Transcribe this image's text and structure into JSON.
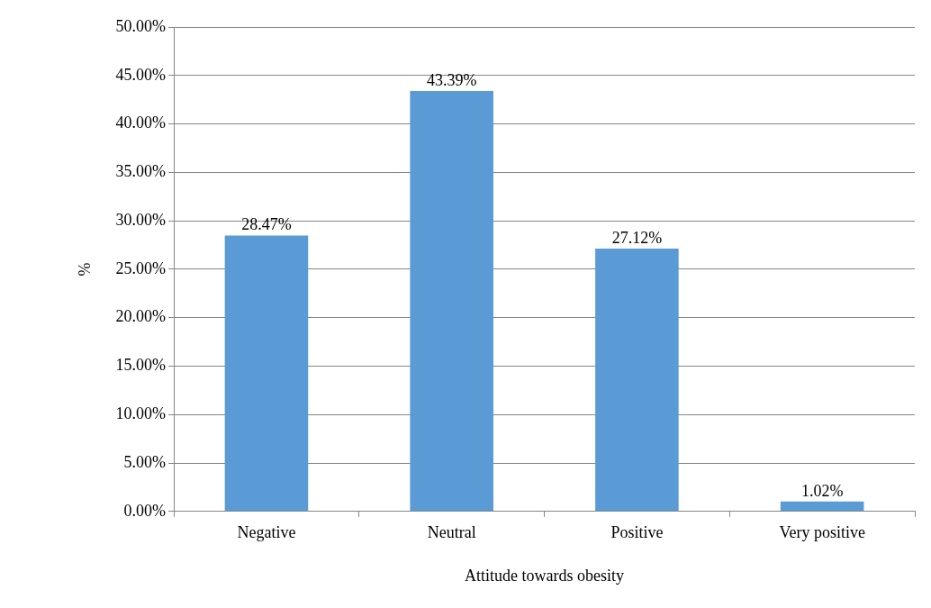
{
  "chart_data": {
    "type": "bar",
    "xlabel": "Attitude towards obesity",
    "ylabel": "%",
    "categories": [
      "Negative",
      "Neutral",
      "Positive",
      "Very positive"
    ],
    "values": [
      28.47,
      43.39,
      27.12,
      1.02
    ],
    "value_labels": [
      "28.47%",
      "43.39%",
      "27.12%",
      "1.02%"
    ],
    "color": "#5b9bd5",
    "ylim": [
      0,
      50
    ],
    "yticks": [
      {
        "value": 0,
        "label": "0.00%"
      },
      {
        "value": 5,
        "label": "5.00%"
      },
      {
        "value": 10,
        "label": "10.00%"
      },
      {
        "value": 15,
        "label": "15.00%"
      },
      {
        "value": 20,
        "label": "20.00%"
      },
      {
        "value": 25,
        "label": "25.00%"
      },
      {
        "value": 30,
        "label": "30.00%"
      },
      {
        "value": 35,
        "label": "35.00%"
      },
      {
        "value": 40,
        "label": "40.00%"
      },
      {
        "value": 45,
        "label": "45.00%"
      },
      {
        "value": 50,
        "label": "50.00%"
      }
    ],
    "grid": "y",
    "legend": false
  }
}
